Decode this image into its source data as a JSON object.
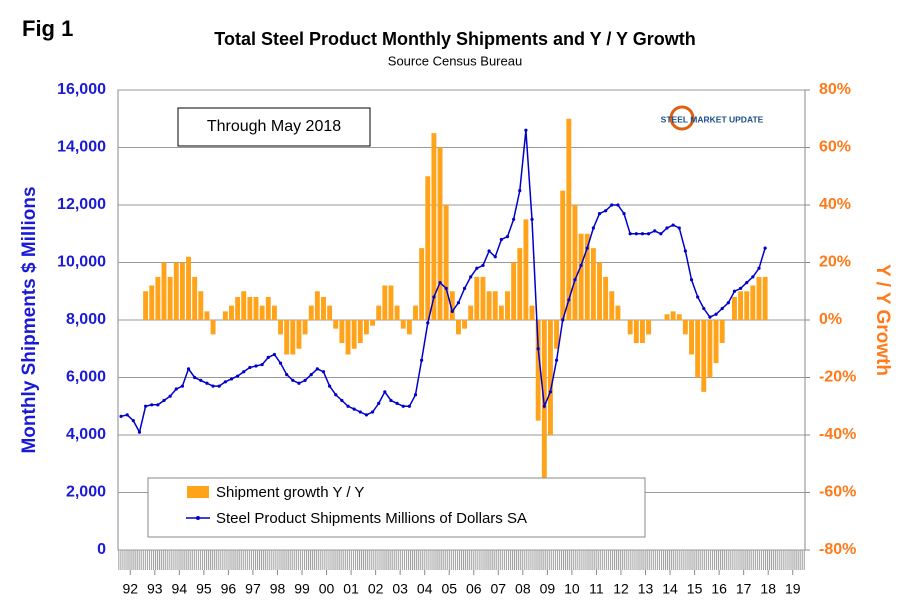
{
  "chart_data": {
    "type": "bar_line",
    "figure_label": "Fig 1",
    "title": "Total Steel Product Monthly Shipments and Y / Y Growth",
    "subtitle": "Source Census Bureau",
    "annotation": "Through May 2018",
    "logo_text": "STEEL MARKET UPDATE",
    "ylabel": "Monthly Shipments $ Millions",
    "y2label": "Y / Y Growth",
    "xlim": [
      1992,
      2020
    ],
    "xticks": [
      {
        "value": 1992.5,
        "label": "92"
      },
      {
        "value": 1993.5,
        "label": "93"
      },
      {
        "value": 1994.5,
        "label": "94"
      },
      {
        "value": 1995.5,
        "label": "95"
      },
      {
        "value": 1996.5,
        "label": "96"
      },
      {
        "value": 1997.5,
        "label": "97"
      },
      {
        "value": 1998.5,
        "label": "98"
      },
      {
        "value": 1999.5,
        "label": "99"
      },
      {
        "value": 2000.5,
        "label": "00"
      },
      {
        "value": 2001.5,
        "label": "01"
      },
      {
        "value": 2002.5,
        "label": "02"
      },
      {
        "value": 2003.5,
        "label": "03"
      },
      {
        "value": 2004.5,
        "label": "04"
      },
      {
        "value": 2005.5,
        "label": "05"
      },
      {
        "value": 2006.5,
        "label": "06"
      },
      {
        "value": 2007.5,
        "label": "07"
      },
      {
        "value": 2008.5,
        "label": "08"
      },
      {
        "value": 2009.5,
        "label": "09"
      },
      {
        "value": 2010.5,
        "label": "10"
      },
      {
        "value": 2011.5,
        "label": "11"
      },
      {
        "value": 2012.5,
        "label": "12"
      },
      {
        "value": 2013.5,
        "label": "13"
      },
      {
        "value": 2014.5,
        "label": "14"
      },
      {
        "value": 2015.5,
        "label": "15"
      },
      {
        "value": 2016.5,
        "label": "16"
      },
      {
        "value": 2017.5,
        "label": "17"
      },
      {
        "value": 2018.5,
        "label": "18"
      },
      {
        "value": 2019.5,
        "label": "19"
      }
    ],
    "ylim": [
      0,
      16000
    ],
    "yticks": [
      0,
      {
        "value": 2000,
        "label": "2,000"
      },
      {
        "value": 4000,
        "label": "4,000"
      },
      {
        "value": 6000,
        "label": "6,000"
      },
      {
        "value": 8000,
        "label": "8,000"
      },
      {
        "value": 10000,
        "label": "10,000"
      },
      {
        "value": 12000,
        "label": "12,000"
      },
      {
        "value": 14000,
        "label": "14,000"
      },
      {
        "value": 16000,
        "label": "16,000"
      }
    ],
    "y2lim": [
      -80,
      80
    ],
    "y2ticks": [
      {
        "value": -80,
        "label": "-80%"
      },
      {
        "value": -60,
        "label": "-60%"
      },
      {
        "value": -40,
        "label": "-40%"
      },
      {
        "value": -20,
        "label": "-20%"
      },
      {
        "value": 0,
        "label": "0%"
      },
      {
        "value": 20,
        "label": "20%"
      },
      {
        "value": 40,
        "label": "40%"
      },
      {
        "value": 60,
        "label": "60%"
      },
      {
        "value": 80,
        "label": "80%"
      }
    ],
    "grid": true,
    "x": [
      1992.125,
      1992.375,
      1992.625,
      1992.875,
      1993.125,
      1993.375,
      1993.625,
      1993.875,
      1994.125,
      1994.375,
      1994.625,
      1994.875,
      1995.125,
      1995.375,
      1995.625,
      1995.875,
      1996.125,
      1996.375,
      1996.625,
      1996.875,
      1997.125,
      1997.375,
      1997.625,
      1997.875,
      1998.125,
      1998.375,
      1998.625,
      1998.875,
      1999.125,
      1999.375,
      1999.625,
      1999.875,
      2000.125,
      2000.375,
      2000.625,
      2000.875,
      2001.125,
      2001.375,
      2001.625,
      2001.875,
      2002.125,
      2002.375,
      2002.625,
      2002.875,
      2003.125,
      2003.375,
      2003.625,
      2003.875,
      2004.125,
      2004.375,
      2004.625,
      2004.875,
      2005.125,
      2005.375,
      2005.625,
      2005.875,
      2006.125,
      2006.375,
      2006.625,
      2006.875,
      2007.125,
      2007.375,
      2007.625,
      2007.875,
      2008.125,
      2008.375,
      2008.625,
      2008.875,
      2009.125,
      2009.375,
      2009.625,
      2009.875,
      2010.125,
      2010.375,
      2010.625,
      2010.875,
      2011.125,
      2011.375,
      2011.625,
      2011.875,
      2012.125,
      2012.375,
      2012.625,
      2012.875,
      2013.125,
      2013.375,
      2013.625,
      2013.875,
      2014.125,
      2014.375,
      2014.625,
      2014.875,
      2015.125,
      2015.375,
      2015.625,
      2015.875,
      2016.125,
      2016.375,
      2016.625,
      2016.875,
      2017.125,
      2017.375,
      2017.625,
      2017.875,
      2018.125,
      2018.375
    ],
    "series": [
      {
        "name": "Shipment growth Y / Y",
        "color": "#ffa31a",
        "axis": "y2",
        "kind": "bar",
        "values": [
          null,
          null,
          null,
          null,
          10,
          12,
          15,
          20,
          15,
          20,
          20,
          22,
          15,
          10,
          3,
          -5,
          0,
          3,
          5,
          8,
          10,
          8,
          8,
          5,
          8,
          5,
          -5,
          -12,
          -12,
          -10,
          -5,
          5,
          10,
          8,
          5,
          -3,
          -8,
          -12,
          -10,
          -8,
          -5,
          -2,
          5,
          12,
          12,
          5,
          -3,
          -5,
          5,
          25,
          50,
          65,
          60,
          40,
          10,
          -5,
          -3,
          5,
          15,
          15,
          10,
          10,
          5,
          10,
          20,
          25,
          35,
          5,
          -35,
          -55,
          -40,
          -10,
          45,
          70,
          40,
          30,
          30,
          25,
          20,
          15,
          10,
          5,
          0,
          -5,
          -8,
          -8,
          -5,
          0,
          0,
          2,
          3,
          2,
          -5,
          -12,
          -20,
          -25,
          -20,
          -15,
          -8,
          0,
          8,
          10,
          10,
          12,
          15,
          15
        ]
      },
      {
        "name": "Steel Product Shipments Millions of Dollars SA",
        "color": "#0000cc",
        "axis": "y",
        "kind": "line",
        "values": [
          4650,
          4700,
          4500,
          4100,
          5000,
          5050,
          5050,
          5200,
          5350,
          5600,
          5700,
          6300,
          6000,
          5900,
          5800,
          5700,
          5700,
          5850,
          5950,
          6050,
          6200,
          6350,
          6400,
          6450,
          6700,
          6800,
          6500,
          6100,
          5900,
          5800,
          5900,
          6100,
          6300,
          6200,
          5700,
          5400,
          5200,
          5000,
          4900,
          4800,
          4700,
          4800,
          5100,
          5500,
          5200,
          5100,
          5000,
          5000,
          5400,
          6600,
          7900,
          8800,
          9300,
          9100,
          8300,
          8600,
          9100,
          9500,
          9800,
          9900,
          10400,
          10200,
          10800,
          10900,
          11500,
          12500,
          14600,
          11500,
          7000,
          5000,
          5500,
          6600,
          8000,
          8700,
          9400,
          9900,
          10500,
          11200,
          11700,
          11800,
          12000,
          12000,
          11700,
          11000,
          11000,
          11000,
          11000,
          11100,
          11000,
          11200,
          11300,
          11200,
          10400,
          9400,
          8800,
          8400,
          8100,
          8200,
          8400,
          8600,
          9000,
          9100,
          9300,
          9500,
          9800,
          10500
        ]
      }
    ]
  }
}
